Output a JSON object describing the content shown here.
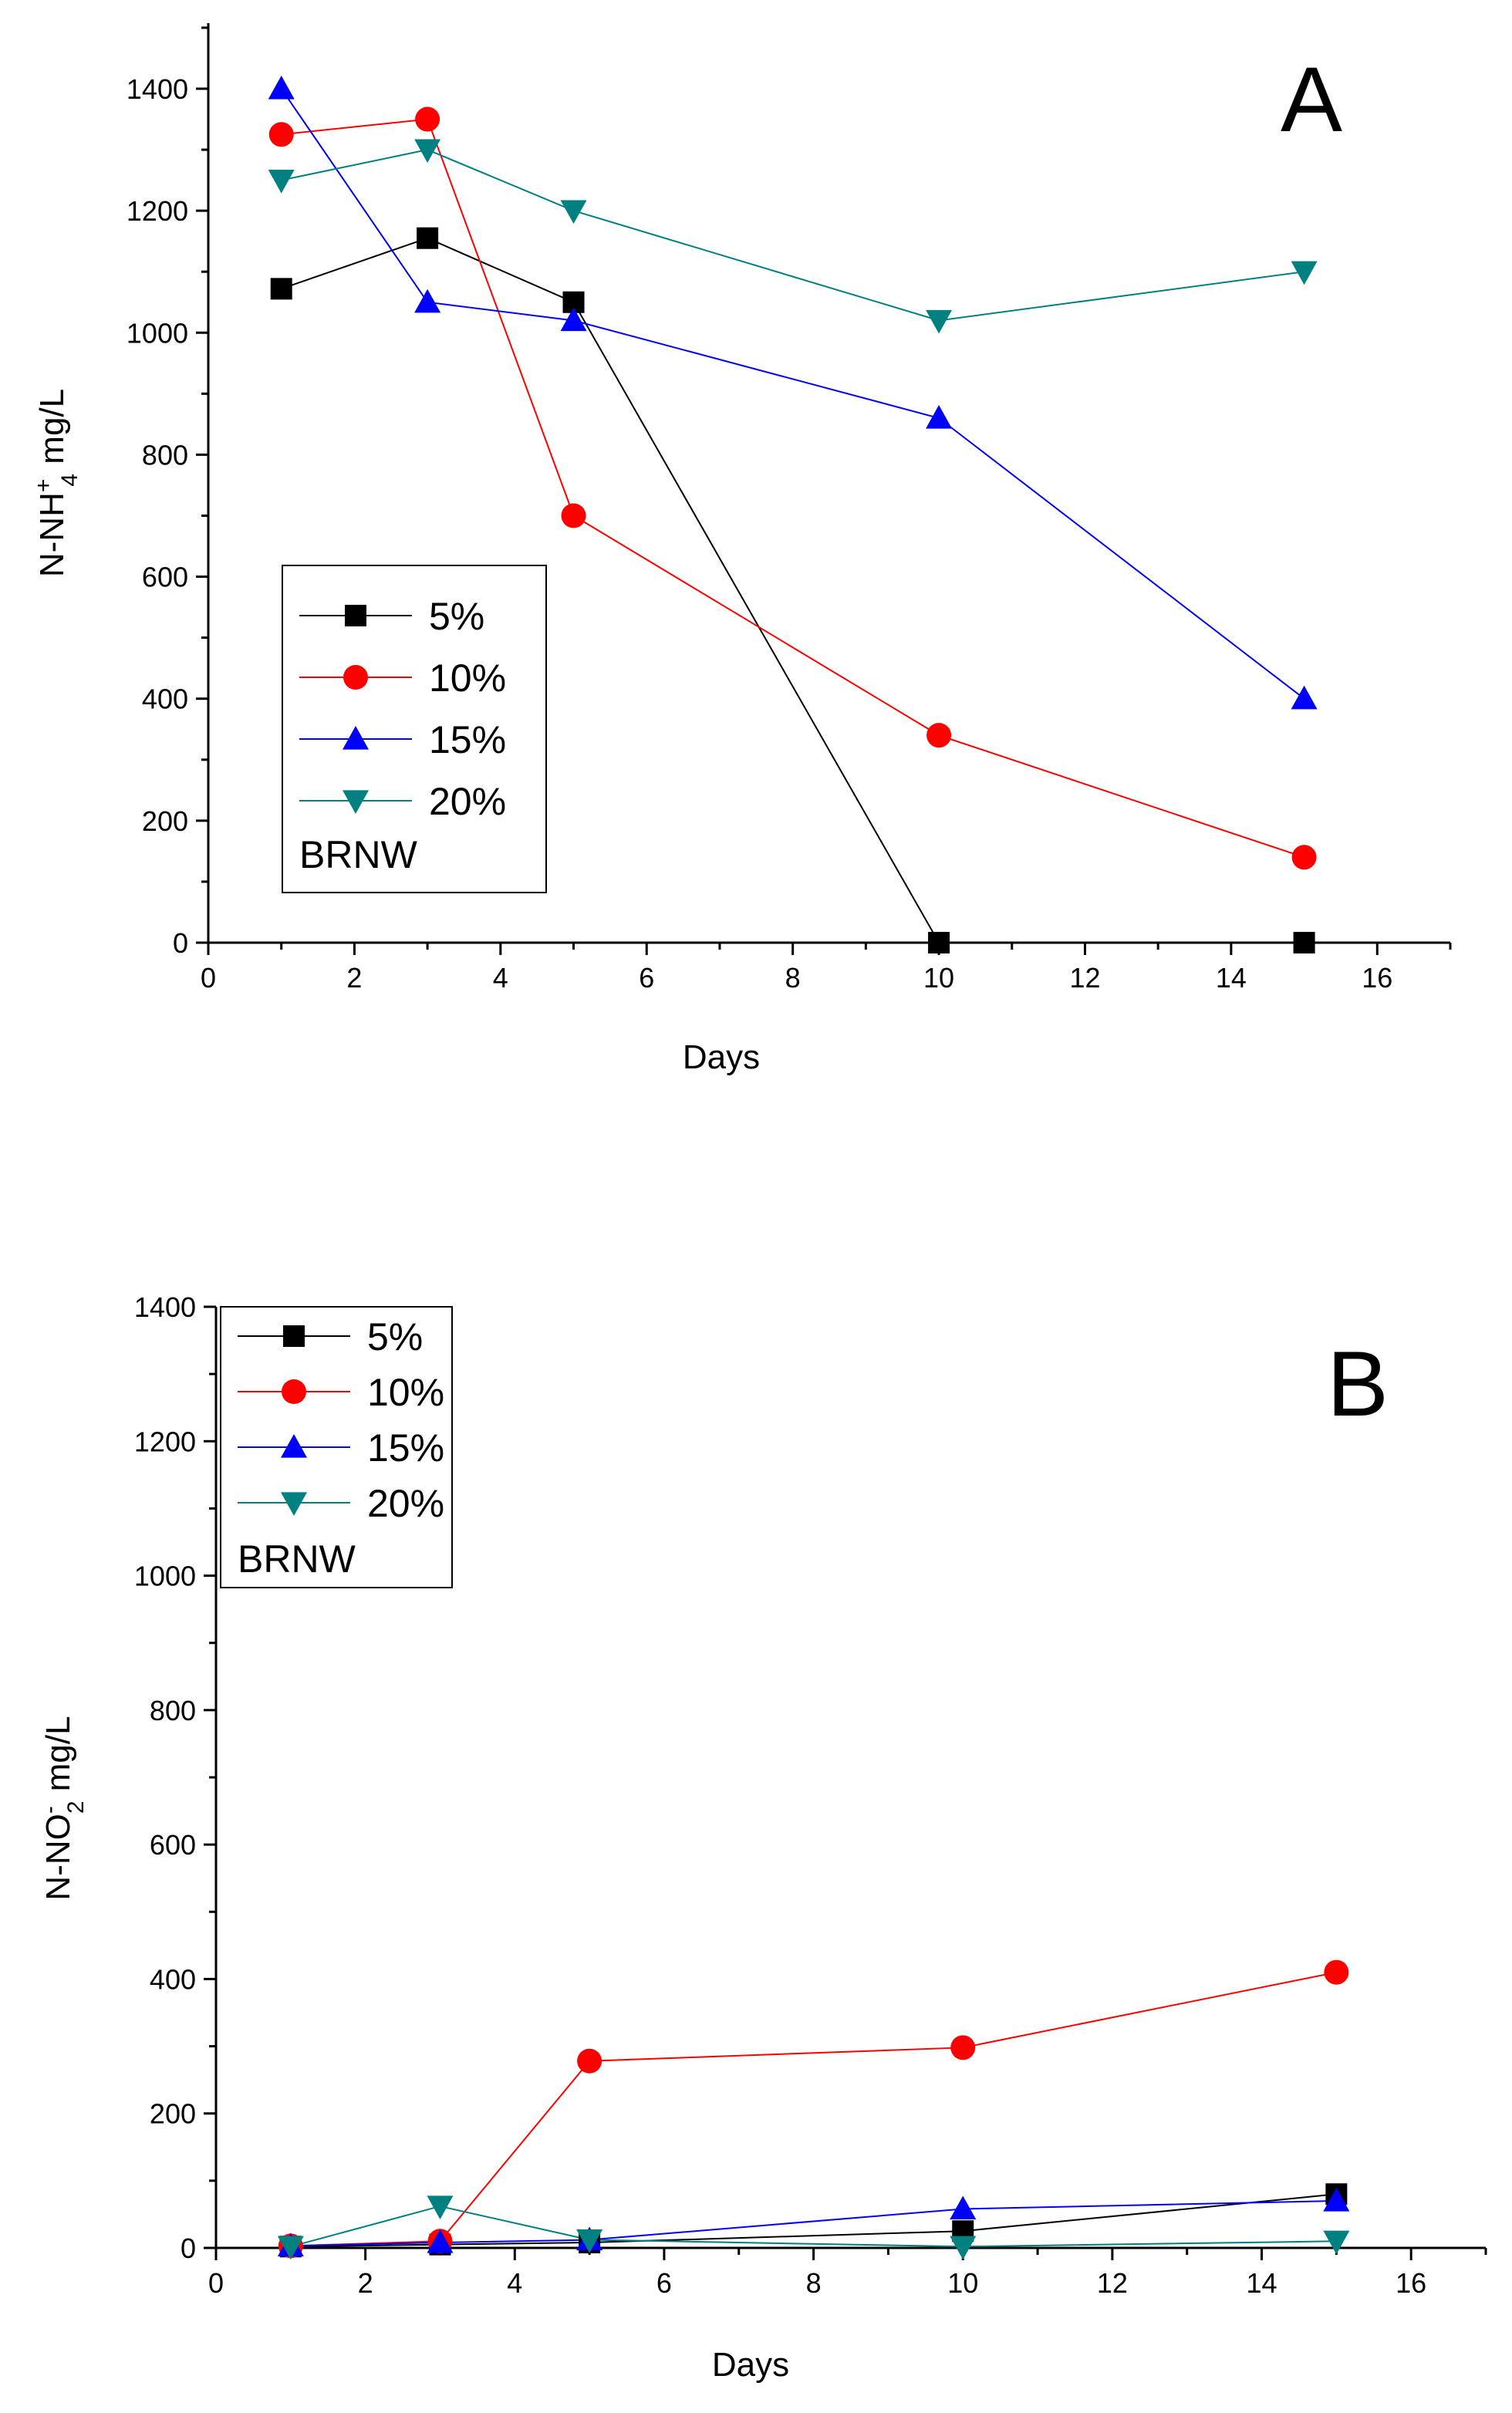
{
  "chart_data": [
    {
      "type": "line",
      "panel_label": "A",
      "xlabel": "Days",
      "ylabel": {
        "base": "N-NH",
        "sub": "4",
        "sup": "+",
        "unit": " mg/L"
      },
      "xlim": [
        0,
        17
      ],
      "ylim": [
        0,
        1500
      ],
      "xticks": [
        0,
        2,
        4,
        6,
        8,
        10,
        12,
        14,
        16
      ],
      "yticks": [
        0,
        200,
        400,
        600,
        800,
        1000,
        1200,
        1400
      ],
      "legend_placement": "lower-left",
      "legend_note": "BRNW",
      "series": [
        {
          "name": "5%",
          "color": "#000000",
          "marker": "square",
          "x": [
            1,
            3,
            5,
            10,
            15
          ],
          "y": [
            1072,
            1155,
            1050,
            0,
            0
          ]
        },
        {
          "name": "10%",
          "color": "#ff0000",
          "marker": "circle",
          "x": [
            1,
            3,
            5,
            10,
            15
          ],
          "y": [
            1325,
            1350,
            700,
            340,
            140
          ]
        },
        {
          "name": "15%",
          "color": "#0000ff",
          "marker": "triangle-up",
          "x": [
            1,
            3,
            5,
            10,
            15
          ],
          "y": [
            1400,
            1050,
            1020,
            860,
            400
          ]
        },
        {
          "name": "20%",
          "color": "#008080",
          "marker": "triangle-down",
          "x": [
            1,
            3,
            5,
            10,
            15
          ],
          "y": [
            1250,
            1300,
            1200,
            1020,
            1100
          ]
        }
      ]
    },
    {
      "type": "line",
      "panel_label": "B",
      "xlabel": "Days",
      "ylabel": {
        "base": "N-NO",
        "sub": "2",
        "sup": "-",
        "unit": " mg/L"
      },
      "xlim": [
        0,
        17
      ],
      "ylim": [
        0,
        1400
      ],
      "xticks": [
        0,
        2,
        4,
        6,
        8,
        10,
        12,
        14,
        16
      ],
      "yticks": [
        0,
        200,
        400,
        600,
        800,
        1000,
        1200,
        1400
      ],
      "legend_placement": "top-left",
      "legend_note": "BRNW",
      "series": [
        {
          "name": "5%",
          "color": "#000000",
          "marker": "square",
          "x": [
            1,
            3,
            5,
            10,
            15
          ],
          "y": [
            2,
            5,
            8,
            25,
            80
          ]
        },
        {
          "name": "10%",
          "color": "#ff0000",
          "marker": "circle",
          "x": [
            1,
            3,
            5,
            10,
            15
          ],
          "y": [
            3,
            10,
            278,
            298,
            410
          ]
        },
        {
          "name": "15%",
          "color": "#0000ff",
          "marker": "triangle-up",
          "x": [
            1,
            3,
            5,
            10,
            15
          ],
          "y": [
            3,
            8,
            12,
            58,
            70
          ]
        },
        {
          "name": "20%",
          "color": "#008080",
          "marker": "triangle-down",
          "x": [
            1,
            3,
            5,
            10,
            15
          ],
          "y": [
            2,
            62,
            12,
            2,
            10
          ]
        }
      ]
    }
  ]
}
